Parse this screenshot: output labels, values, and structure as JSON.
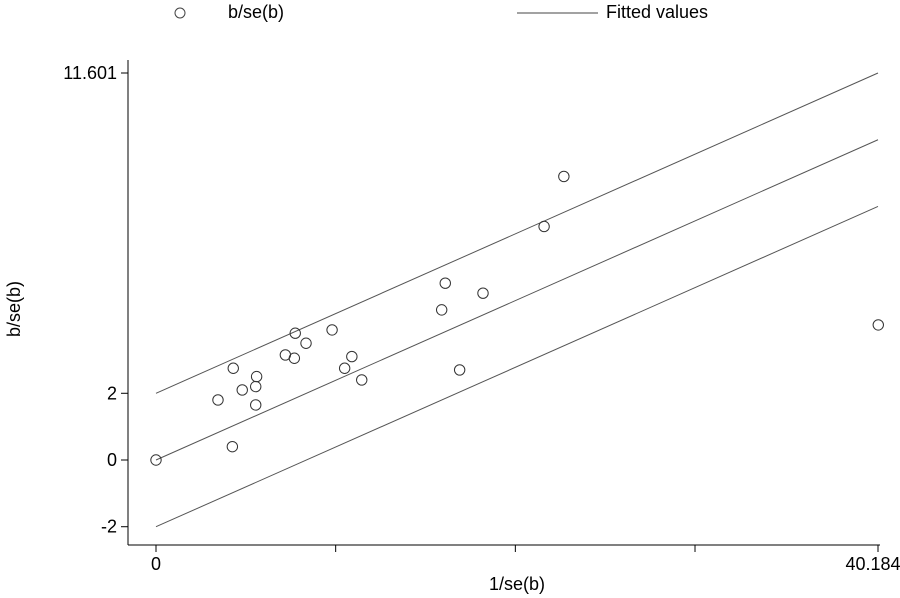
{
  "chart_data": {
    "type": "scatter",
    "xlabel": "1/se(b)",
    "ylabel": "b/se(b)",
    "xlim": [
      0,
      40.1844
    ],
    "ylim": [
      -2,
      11.601
    ],
    "x_ticks": [
      0,
      10,
      20,
      30,
      40.1844
    ],
    "x_tick_labels": [
      "0",
      "",
      "",
      "",
      "40.1844"
    ],
    "y_ticks": [
      -2,
      0,
      2,
      11.601
    ],
    "y_tick_labels": [
      "-2",
      "0",
      "2",
      "11.601"
    ],
    "legend": {
      "position": "top",
      "items": [
        {
          "label": "b/se(b)",
          "marker": "hollow-circle"
        },
        {
          "label": "Fitted values",
          "marker": "line"
        }
      ]
    },
    "series": [
      {
        "name": "b/se(b)",
        "kind": "scatter",
        "points": [
          {
            "x": 0.0,
            "y": 0.0
          },
          {
            "x": 3.45,
            "y": 1.8
          },
          {
            "x": 4.25,
            "y": 0.4
          },
          {
            "x": 4.3,
            "y": 2.75
          },
          {
            "x": 4.8,
            "y": 2.1
          },
          {
            "x": 5.55,
            "y": 1.65
          },
          {
            "x": 5.55,
            "y": 2.2
          },
          {
            "x": 5.6,
            "y": 2.5
          },
          {
            "x": 7.2,
            "y": 3.15
          },
          {
            "x": 7.7,
            "y": 3.05
          },
          {
            "x": 7.75,
            "y": 3.8
          },
          {
            "x": 8.35,
            "y": 3.5
          },
          {
            "x": 9.8,
            "y": 3.9
          },
          {
            "x": 10.5,
            "y": 2.75
          },
          {
            "x": 10.9,
            "y": 3.1
          },
          {
            "x": 11.45,
            "y": 2.4
          },
          {
            "x": 15.9,
            "y": 4.5
          },
          {
            "x": 16.1,
            "y": 5.3
          },
          {
            "x": 16.9,
            "y": 2.7
          },
          {
            "x": 18.2,
            "y": 5.0
          },
          {
            "x": 21.6,
            "y": 7.0
          },
          {
            "x": 22.7,
            "y": 8.5
          },
          {
            "x": 40.2,
            "y": 4.05
          }
        ]
      },
      {
        "name": "Fitted values",
        "kind": "line",
        "points": [
          {
            "x": 0,
            "y": 0
          },
          {
            "x": 40.1844,
            "y": 9.6
          }
        ]
      },
      {
        "kind": "line",
        "points": [
          {
            "x": 0,
            "y": 2
          },
          {
            "x": 40.1844,
            "y": 11.601
          }
        ]
      },
      {
        "kind": "line",
        "points": [
          {
            "x": 0,
            "y": -2
          },
          {
            "x": 40.1844,
            "y": 7.6
          }
        ]
      }
    ]
  }
}
